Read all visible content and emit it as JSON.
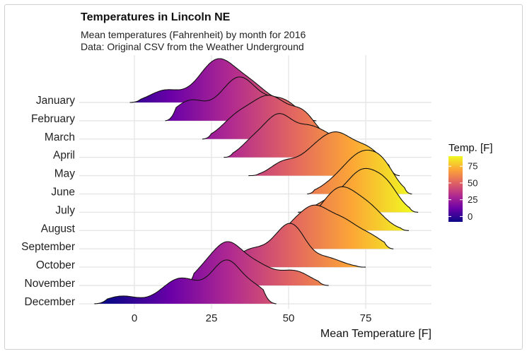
{
  "chart_data": {
    "type": "ridgeline",
    "title": "Temperatures in Lincoln NE",
    "subtitle_line1": "Mean temperatures (Fahrenheit) by month for 2016",
    "subtitle_line2": "Data: Original CSV from the Weather Underground",
    "xlabel": "Mean Temperature [F]",
    "ylabel": "",
    "xlim": [
      -13,
      93
    ],
    "x_ticks": [
      0,
      25,
      50,
      75
    ],
    "x_tick_labels": [
      "0",
      "25",
      "50",
      "75"
    ],
    "legend": {
      "title": "Temp. [F]",
      "position": "right",
      "range": [
        -8,
        90
      ],
      "ticks": [
        0,
        25,
        50,
        75
      ],
      "tick_labels": [
        "0",
        "25",
        "50",
        "75"
      ],
      "colors": [
        "#0d0887",
        "#6a00a8",
        "#b12a90",
        "#e16462",
        "#fca636",
        "#f0f921"
      ]
    },
    "series": [
      {
        "name": "January",
        "range": [
          -1.5,
          49
        ],
        "peaks": [
          [
            10,
            0.28,
            5
          ],
          [
            27,
            1.0,
            6
          ],
          [
            38,
            0.35,
            5
          ]
        ]
      },
      {
        "name": "February",
        "range": [
          10,
          59
        ],
        "peaks": [
          [
            18,
            0.45,
            5
          ],
          [
            34,
            1.0,
            6
          ],
          [
            48,
            0.45,
            5
          ]
        ]
      },
      {
        "name": "March",
        "range": [
          22,
          63
        ],
        "peaks": [
          [
            33,
            0.45,
            5
          ],
          [
            44,
            1.0,
            6
          ],
          [
            55,
            0.5,
            4
          ]
        ]
      },
      {
        "name": "April",
        "range": [
          29,
          70
        ],
        "peaks": [
          [
            38,
            0.3,
            4
          ],
          [
            47,
            1.0,
            5
          ],
          [
            57,
            0.55,
            4
          ],
          [
            64,
            0.4,
            4
          ]
        ]
      },
      {
        "name": "May",
        "range": [
          37,
          86
        ],
        "peaks": [
          [
            48,
            0.35,
            4
          ],
          [
            58,
            0.6,
            5
          ],
          [
            66,
            1.0,
            5
          ],
          [
            76,
            0.7,
            5
          ]
        ]
      },
      {
        "name": "June",
        "range": [
          56,
          90
        ],
        "peaks": [
          [
            66,
            0.35,
            5
          ],
          [
            74,
            1.0,
            5
          ],
          [
            81,
            0.6,
            4
          ]
        ]
      },
      {
        "name": "July",
        "range": [
          53,
          92
        ],
        "peaks": [
          [
            64,
            0.3,
            5
          ],
          [
            74,
            1.0,
            5
          ],
          [
            82,
            0.55,
            4
          ]
        ]
      },
      {
        "name": "August",
        "range": [
          51,
          89
        ],
        "peaks": [
          [
            60,
            0.3,
            5
          ],
          [
            67,
            1.0,
            5
          ],
          [
            76,
            0.6,
            5
          ]
        ]
      },
      {
        "name": "September",
        "range": [
          43,
          84
        ],
        "peaks": [
          [
            50,
            0.35,
            4
          ],
          [
            58,
            1.0,
            5
          ],
          [
            68,
            0.65,
            5
          ],
          [
            77,
            0.25,
            4
          ]
        ]
      },
      {
        "name": "October",
        "range": [
          31,
          75
        ],
        "peaks": [
          [
            38,
            0.55,
            5
          ],
          [
            47,
            0.6,
            4
          ],
          [
            52,
            1.0,
            4
          ],
          [
            62,
            0.3,
            5
          ]
        ]
      },
      {
        "name": "November",
        "range": [
          16,
          63
        ],
        "peaks": [
          [
            22,
            0.25,
            4
          ],
          [
            30,
            1.0,
            5
          ],
          [
            40,
            0.45,
            5
          ],
          [
            52,
            0.35,
            5
          ]
        ]
      },
      {
        "name": "December",
        "range": [
          -13,
          46
        ],
        "peaks": [
          [
            -4,
            0.18,
            5
          ],
          [
            15,
            0.6,
            6
          ],
          [
            30,
            1.0,
            5
          ],
          [
            40,
            0.3,
            4
          ]
        ]
      }
    ]
  }
}
